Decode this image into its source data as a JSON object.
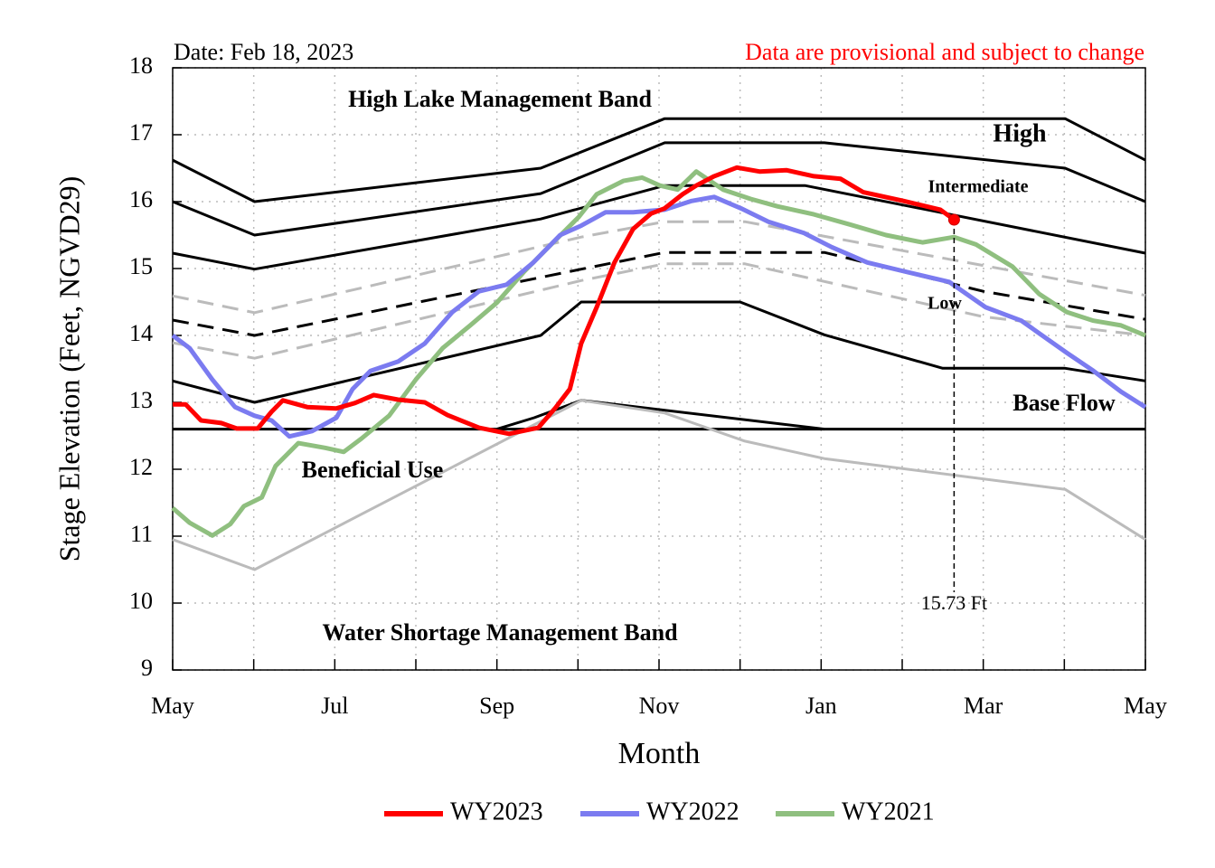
{
  "chart_data": {
    "type": "line",
    "date_note": "Date: Feb 18, 2023",
    "provisional_note": "Data are provisional and subject to change",
    "x_label": "Month",
    "y_label": "Stage Elevation (Feet, NGVD29)",
    "band_labels": {
      "high_lake": "High Lake Management Band",
      "high": "High",
      "intermediate": "Intermediate",
      "low": "Low",
      "base_flow": "Base Flow",
      "beneficial_use": "Beneficial Use",
      "water_shortage": "Water Shortage Management Band"
    },
    "marker": {
      "x": 9.64,
      "value": 15.73,
      "label": "15.73 Ft",
      "color": "#ff0000"
    },
    "xlim": [
      0,
      12
    ],
    "xticks": [
      {
        "value": 0,
        "label": "May"
      },
      {
        "value": 2,
        "label": "Jul"
      },
      {
        "value": 4,
        "label": "Sep"
      },
      {
        "value": 6,
        "label": "Nov"
      },
      {
        "value": 8,
        "label": "Jan"
      },
      {
        "value": 10,
        "label": "Mar"
      },
      {
        "value": 12,
        "label": "May"
      }
    ],
    "xminor": [
      1,
      3,
      5,
      7,
      9,
      11
    ],
    "ylim": [
      9,
      18
    ],
    "yticks": [
      9,
      10,
      11,
      12,
      13,
      14,
      15,
      16,
      17,
      18
    ],
    "grid": true,
    "bands": [
      {
        "color": "#000000",
        "dash": false,
        "x": [
          0,
          1.01,
          4.54,
          6.07,
          11.01,
          12
        ],
        "values": [
          16.62,
          16.0,
          16.5,
          17.24,
          17.24,
          16.62
        ]
      },
      {
        "color": "#000000",
        "dash": false,
        "x": [
          0,
          1.01,
          4.54,
          6.07,
          8.04,
          11.01,
          12
        ],
        "values": [
          16.0,
          15.5,
          16.12,
          16.88,
          16.88,
          16.5,
          16.0
        ]
      },
      {
        "color": "#000000",
        "dash": false,
        "x": [
          0,
          1.01,
          4.54,
          6.07,
          7.8,
          12
        ],
        "values": [
          15.23,
          14.99,
          15.74,
          16.24,
          16.24,
          15.23
        ]
      },
      {
        "color": "#000000",
        "dash": true,
        "x": [
          0,
          1.01,
          5.04,
          6.07,
          8.04,
          10.0,
          12
        ],
        "values": [
          14.23,
          14.0,
          14.99,
          15.24,
          15.24,
          14.66,
          14.24
        ]
      },
      {
        "color": "#000000",
        "dash": false,
        "x": [
          0,
          1.01,
          4.54,
          5.04,
          7.0,
          8.04,
          9.5,
          11.01,
          12
        ],
        "values": [
          13.32,
          13.0,
          14.0,
          14.5,
          14.5,
          14.01,
          13.51,
          13.51,
          13.32
        ]
      },
      {
        "color": "#000000",
        "dash": false,
        "x": [
          0,
          12
        ],
        "values": [
          12.6,
          12.6
        ]
      },
      {
        "color": "#000000",
        "dash": false,
        "x": [
          4.0,
          4.46,
          5.04,
          8.04
        ],
        "values": [
          12.6,
          12.77,
          13.03,
          12.6
        ]
      },
      {
        "color": "#bbbbbb",
        "dash": true,
        "x": [
          0,
          1.01,
          5.04,
          6.07,
          7.06,
          12
        ],
        "values": [
          14.59,
          14.34,
          15.47,
          15.7,
          15.7,
          14.6
        ]
      },
      {
        "color": "#bbbbbb",
        "dash": true,
        "x": [
          0,
          1.01,
          5.04,
          6.07,
          7.06,
          10.0,
          12
        ],
        "values": [
          13.89,
          13.66,
          14.82,
          15.07,
          15.07,
          14.28,
          14.0
        ]
      },
      {
        "color": "#bbbbbb",
        "dash": false,
        "x": [
          0,
          1.01,
          5.04,
          6.07,
          7.06,
          8.04,
          11.01,
          12
        ],
        "values": [
          10.95,
          10.5,
          13.03,
          12.84,
          12.42,
          12.16,
          11.7,
          10.95
        ]
      }
    ],
    "series": [
      {
        "name": "WY2023",
        "color": "#ff0000",
        "x": [
          0,
          0.16,
          0.35,
          0.6,
          0.79,
          1.05,
          1.22,
          1.36,
          1.66,
          2.02,
          2.25,
          2.48,
          2.78,
          3.11,
          3.39,
          3.78,
          4.15,
          4.51,
          4.73,
          4.9,
          5.04,
          5.23,
          5.45,
          5.68,
          5.9,
          6.07,
          6.29,
          6.46,
          6.68,
          6.96,
          7.24,
          7.57,
          7.91,
          8.24,
          8.52,
          9.02,
          9.47,
          9.64
        ],
        "values": [
          12.97,
          12.97,
          12.73,
          12.69,
          12.61,
          12.61,
          12.86,
          13.03,
          12.93,
          12.91,
          12.99,
          13.11,
          13.04,
          13.0,
          12.81,
          12.62,
          12.53,
          12.62,
          12.93,
          13.2,
          13.88,
          14.42,
          15.09,
          15.59,
          15.82,
          15.9,
          16.11,
          16.24,
          16.38,
          16.51,
          16.45,
          16.47,
          16.38,
          16.34,
          16.14,
          16.01,
          15.88,
          15.73
        ]
      },
      {
        "name": "WY2022",
        "color": "#7b7bf0",
        "x": [
          0,
          0.21,
          0.49,
          0.77,
          1.01,
          1.22,
          1.44,
          1.72,
          2.02,
          2.22,
          2.44,
          2.78,
          3.11,
          3.45,
          3.78,
          4.12,
          4.45,
          4.78,
          5.04,
          5.34,
          5.68,
          6.07,
          6.4,
          6.68,
          7.01,
          7.35,
          7.79,
          8.13,
          8.57,
          9.02,
          9.58,
          10.03,
          10.47,
          11.03,
          11.36,
          11.7,
          12
        ],
        "values": [
          14.0,
          13.81,
          13.34,
          12.93,
          12.8,
          12.73,
          12.49,
          12.57,
          12.77,
          13.2,
          13.47,
          13.61,
          13.88,
          14.35,
          14.66,
          14.76,
          15.09,
          15.5,
          15.64,
          15.84,
          15.84,
          15.88,
          16.01,
          16.07,
          15.9,
          15.7,
          15.53,
          15.32,
          15.09,
          14.96,
          14.8,
          14.42,
          14.22,
          13.74,
          13.47,
          13.16,
          12.93
        ]
      },
      {
        "name": "WY2021",
        "color": "#8fbf7f",
        "x": [
          0,
          0.21,
          0.49,
          0.71,
          0.88,
          1.1,
          1.27,
          1.55,
          1.88,
          2.11,
          2.33,
          2.67,
          3.0,
          3.33,
          3.67,
          4.0,
          4.34,
          4.67,
          5.01,
          5.23,
          5.56,
          5.79,
          6.01,
          6.23,
          6.46,
          6.79,
          7.13,
          7.46,
          7.91,
          8.35,
          8.8,
          9.25,
          9.64,
          9.91,
          10.36,
          10.69,
          11.03,
          11.36,
          11.7,
          12
        ],
        "values": [
          11.42,
          11.2,
          11.01,
          11.18,
          11.45,
          11.58,
          12.05,
          12.39,
          12.32,
          12.26,
          12.46,
          12.8,
          13.34,
          13.81,
          14.15,
          14.49,
          14.96,
          15.36,
          15.77,
          16.11,
          16.31,
          16.36,
          16.24,
          16.18,
          16.45,
          16.18,
          16.04,
          15.93,
          15.81,
          15.66,
          15.5,
          15.39,
          15.47,
          15.36,
          15.03,
          14.62,
          14.35,
          14.22,
          14.15,
          14.0
        ]
      }
    ]
  }
}
